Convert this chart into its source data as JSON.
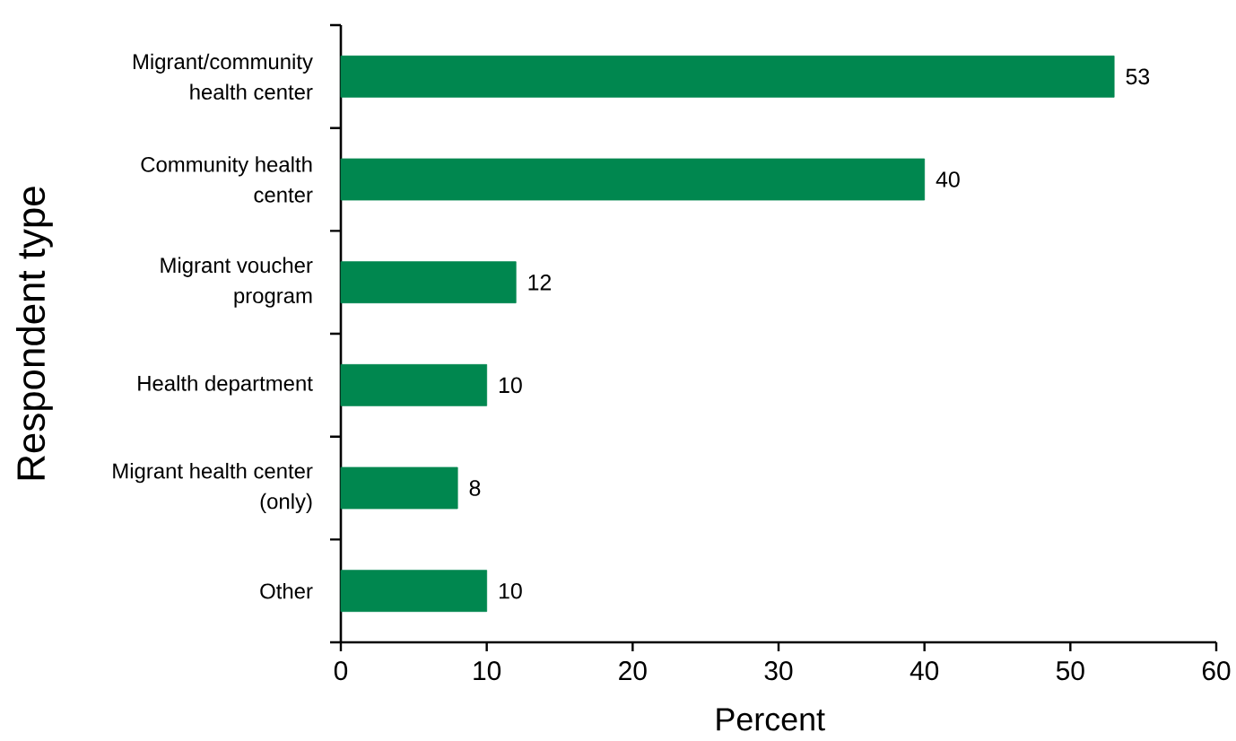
{
  "chart_data": {
    "type": "bar",
    "orientation": "horizontal",
    "categories": [
      "Migrant/community health center",
      "Community health center",
      "Migrant voucher program",
      "Health department",
      "Migrant health center (only)",
      "Other"
    ],
    "values": [
      53,
      40,
      12,
      10,
      8,
      10
    ],
    "color": "#00874f",
    "data_labels": true,
    "xlim": [
      0,
      60
    ],
    "xticks": [
      0,
      10,
      20,
      30,
      40,
      50,
      60
    ],
    "xlabel": "Percent",
    "ylabel": "Respondent type"
  }
}
